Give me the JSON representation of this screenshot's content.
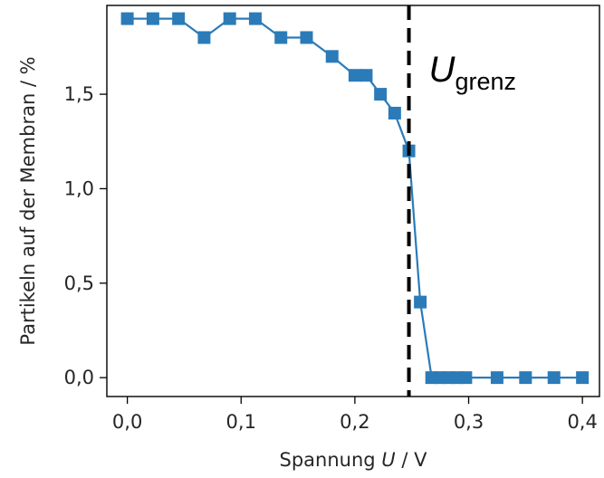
{
  "chart_data": {
    "type": "line",
    "title": "",
    "xlabel": {
      "prefix": "Spannung ",
      "variable": "U",
      "suffix": " / V"
    },
    "ylabel": "Partikeln auf der Membran / %",
    "xlim": [
      -0.018,
      0.415
    ],
    "ylim": [
      -0.1,
      1.97
    ],
    "xticks": [
      0.0,
      0.1,
      0.2,
      0.3,
      0.4
    ],
    "xtick_labels": [
      "0,0",
      "0,1",
      "0,2",
      "0,3",
      "0,4"
    ],
    "yticks": [
      0.0,
      0.5,
      1.0,
      1.5
    ],
    "ytick_labels": [
      "0,0",
      "0,5",
      "1,0",
      "1,5"
    ],
    "grid": false,
    "series": [
      {
        "color": "#2b7bb9",
        "marker": "square",
        "x": [
          0.0,
          0.0225,
          0.045,
          0.0675,
          0.09,
          0.1125,
          0.135,
          0.1575,
          0.18,
          0.2,
          0.21,
          0.2225,
          0.235,
          0.2475,
          0.2575,
          0.2675,
          0.275,
          0.2825,
          0.29,
          0.2975,
          0.325,
          0.35,
          0.375,
          0.4
        ],
        "y": [
          1.9,
          1.9,
          1.9,
          1.8,
          1.9,
          1.9,
          1.8,
          1.8,
          1.7,
          1.6,
          1.6,
          1.5,
          1.4,
          1.2,
          0.4,
          0.0,
          0.0,
          0.0,
          0.0,
          0.0,
          0.0,
          0.0,
          0.0,
          0.0
        ]
      }
    ],
    "vline": {
      "x": 0.2475,
      "style": "dashed",
      "color": "#000000"
    },
    "annotation": {
      "main": "U",
      "subscript": "grenz"
    }
  }
}
